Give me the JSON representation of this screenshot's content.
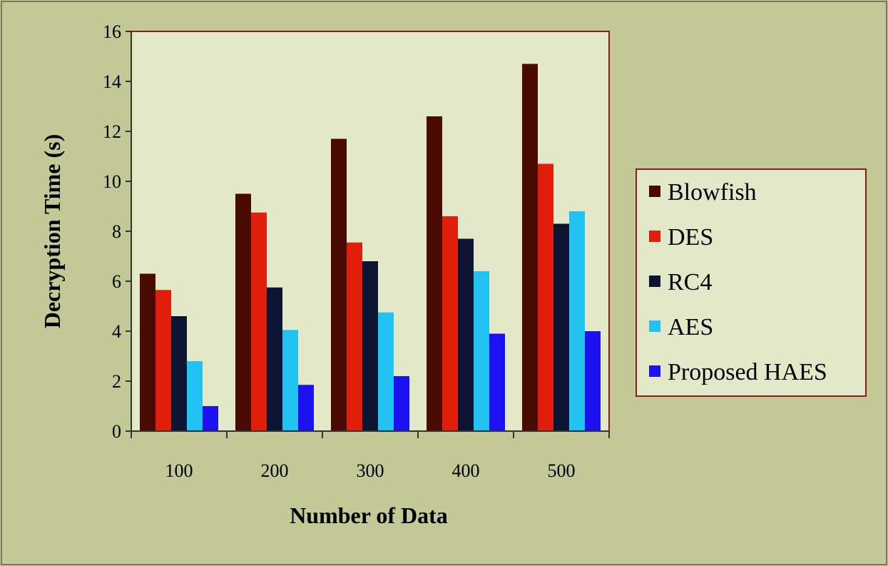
{
  "chart_data": {
    "type": "bar",
    "title": "",
    "xlabel": "Number of Data",
    "ylabel": "Decryption Time (s)",
    "categories": [
      "100",
      "200",
      "300",
      "400",
      "500"
    ],
    "ylim": [
      0,
      16
    ],
    "yticks": [
      "0",
      "2",
      "4",
      "6",
      "8",
      "10",
      "12",
      "14",
      "16"
    ],
    "grid": false,
    "legend_position": "right",
    "series": [
      {
        "name": "Blowfish",
        "color": "#4a0a04",
        "values": [
          6.3,
          9.5,
          11.7,
          12.6,
          14.7
        ]
      },
      {
        "name": "DES",
        "color": "#e01e0a",
        "values": [
          5.65,
          8.75,
          7.55,
          8.6,
          10.7
        ]
      },
      {
        "name": "RC4",
        "color": "#0c1433",
        "values": [
          4.6,
          5.75,
          6.8,
          7.7,
          8.3
        ]
      },
      {
        "name": "AES",
        "color": "#22c2f2",
        "values": [
          2.8,
          4.05,
          4.75,
          6.4,
          8.8
        ]
      },
      {
        "name": "Proposed HAES",
        "color": "#1a10f0",
        "values": [
          1.0,
          1.85,
          2.2,
          3.9,
          4.0
        ]
      }
    ],
    "colors": {
      "background": "#c2c997",
      "plot_area": "#e3e8c8",
      "frame": "#8b1a1a"
    }
  }
}
